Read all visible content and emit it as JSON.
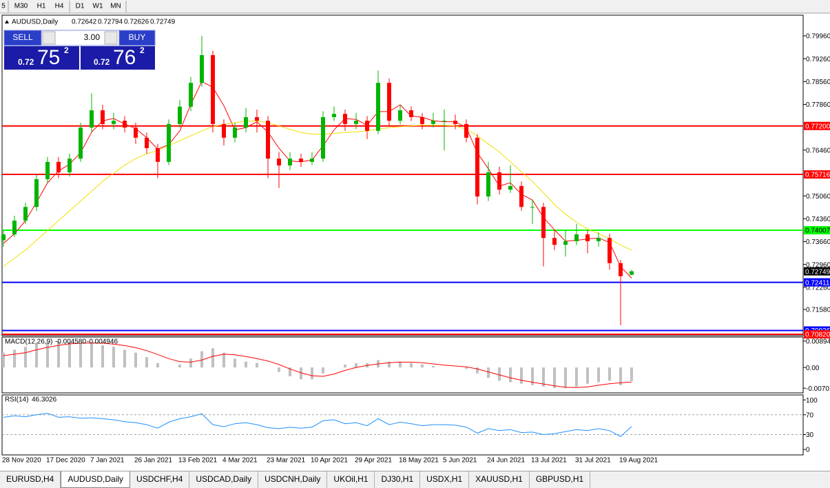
{
  "toolbar": {
    "timeframes": [
      "5",
      "M30",
      "H1",
      "H4",
      "D1",
      "W1",
      "MN"
    ]
  },
  "trade_panel": {
    "sell": "SELL",
    "buy": "BUY",
    "lots": "3.00",
    "sell_price": [
      "0.72",
      "75",
      "2"
    ],
    "buy_price": [
      "0.72",
      "76",
      "2"
    ]
  },
  "chart_data": [
    {
      "type": "candlestick",
      "title": "AUDUSD,Daily",
      "up_color": "#00b400",
      "down_color": "#ff0000",
      "categories": [
        "28 Nov 2020",
        null,
        null,
        null,
        "17 Dec 2020",
        null,
        null,
        null,
        "7 Jan 2021",
        null,
        null,
        null,
        "26 Jan 2021",
        null,
        null,
        null,
        "13 Feb 2021",
        null,
        null,
        null,
        "4 Mar 2021",
        null,
        null,
        null,
        "23 Mar 2021",
        null,
        null,
        null,
        "10 Apr 2021",
        null,
        null,
        null,
        "29 Apr 2021",
        null,
        null,
        null,
        "18 May 2021",
        null,
        null,
        null,
        "5 Jun 2021",
        null,
        null,
        null,
        "24 Jun 2021",
        null,
        null,
        null,
        "13 Jul 2021",
        null,
        null,
        null,
        "31 Jul 2021",
        null,
        null,
        null,
        "19 Aug 2021",
        null
      ],
      "candles": [
        [
          0.737,
          0.74,
          0.735,
          0.7388
        ],
        [
          0.7388,
          0.7445,
          0.738,
          0.743
        ],
        [
          0.743,
          0.7485,
          0.742,
          0.7472
        ],
        [
          0.7472,
          0.757,
          0.746,
          0.7557
        ],
        [
          0.7557,
          0.7625,
          0.7545,
          0.761
        ],
        [
          0.761,
          0.7625,
          0.756,
          0.7578
        ],
        [
          0.7578,
          0.7635,
          0.7565,
          0.762
        ],
        [
          0.762,
          0.773,
          0.761,
          0.7715
        ],
        [
          0.7715,
          0.782,
          0.77,
          0.7768
        ],
        [
          0.7768,
          0.7785,
          0.771,
          0.7726
        ],
        [
          0.7726,
          0.776,
          0.771,
          0.7736
        ],
        [
          0.7736,
          0.775,
          0.77,
          0.7715
        ],
        [
          0.7715,
          0.773,
          0.7665,
          0.7684
        ],
        [
          0.7684,
          0.77,
          0.7635,
          0.7652
        ],
        [
          0.7652,
          0.7665,
          0.756,
          0.761
        ],
        [
          0.761,
          0.774,
          0.76,
          0.7726
        ],
        [
          0.7726,
          0.78,
          0.7715,
          0.7779
        ],
        [
          0.7779,
          0.787,
          0.7765,
          0.7852
        ],
        [
          0.7852,
          0.7996,
          0.784,
          0.7937
        ],
        [
          0.7937,
          0.795,
          0.77,
          0.7726
        ],
        [
          0.7726,
          0.774,
          0.766,
          0.7684
        ],
        [
          0.7684,
          0.773,
          0.767,
          0.7715
        ],
        [
          0.7715,
          0.7775,
          0.77,
          0.7747
        ],
        [
          0.7747,
          0.777,
          0.77,
          0.7736
        ],
        [
          0.7736,
          0.775,
          0.756,
          0.762
        ],
        [
          0.762,
          0.764,
          0.753,
          0.7599
        ],
        [
          0.7599,
          0.764,
          0.7585,
          0.762
        ],
        [
          0.762,
          0.7635,
          0.7595,
          0.761
        ],
        [
          0.761,
          0.764,
          0.76,
          0.762
        ],
        [
          0.762,
          0.7765,
          0.761,
          0.7747
        ],
        [
          0.7747,
          0.778,
          0.7735,
          0.7757
        ],
        [
          0.7757,
          0.777,
          0.7705,
          0.7726
        ],
        [
          0.7726,
          0.776,
          0.771,
          0.7736
        ],
        [
          0.7736,
          0.775,
          0.768,
          0.7705
        ],
        [
          0.7705,
          0.789,
          0.7695,
          0.7852
        ],
        [
          0.7852,
          0.7865,
          0.772,
          0.7736
        ],
        [
          0.7736,
          0.7785,
          0.7725,
          0.7768
        ],
        [
          0.7768,
          0.778,
          0.7735,
          0.7747
        ],
        [
          0.7747,
          0.776,
          0.771,
          0.7726
        ],
        [
          0.7726,
          0.776,
          0.7715,
          0.7736
        ],
        [
          0.7736,
          0.777,
          0.7645,
          0.7736
        ],
        [
          0.7736,
          0.7755,
          0.771,
          0.7726
        ],
        [
          0.7726,
          0.774,
          0.767,
          0.7684
        ],
        [
          0.7684,
          0.7695,
          0.748,
          0.7504
        ],
        [
          0.7504,
          0.761,
          0.749,
          0.7578
        ],
        [
          0.7578,
          0.7595,
          0.751,
          0.7525
        ],
        [
          0.7525,
          0.76,
          0.7515,
          0.7536
        ],
        [
          0.7536,
          0.755,
          0.746,
          0.7472
        ],
        [
          0.7472,
          0.7495,
          0.742,
          0.7472
        ],
        [
          0.7472,
          0.7485,
          0.729,
          0.7377
        ],
        [
          0.7377,
          0.74,
          0.734,
          0.7356
        ],
        [
          0.7356,
          0.74,
          0.732,
          0.7367
        ],
        [
          0.7367,
          0.742,
          0.7355,
          0.7388
        ],
        [
          0.7388,
          0.74,
          0.733,
          0.7367
        ],
        [
          0.7367,
          0.7395,
          0.735,
          0.7377
        ],
        [
          0.7377,
          0.739,
          0.728,
          0.73
        ],
        [
          0.73,
          0.731,
          0.711,
          0.726
        ],
        [
          0.72642,
          0.72794,
          0.72626,
          0.72749
        ]
      ],
      "series": [
        {
          "color": "#ff0000",
          "values": [
            0.736,
            0.739,
            0.743,
            0.7486,
            0.7546,
            0.7582,
            0.7603,
            0.7638,
            0.7701,
            0.7736,
            0.7743,
            0.7726,
            0.7712,
            0.7684,
            0.7649,
            0.7663,
            0.7705,
            0.7786,
            0.7856,
            0.7838,
            0.7782,
            0.7708,
            0.7715,
            0.7733,
            0.7701,
            0.7652,
            0.7613,
            0.761,
            0.7616,
            0.7659,
            0.7708,
            0.7743,
            0.774,
            0.7722,
            0.7764,
            0.7764,
            0.7785,
            0.775,
            0.7747,
            0.7736,
            0.7733,
            0.7733,
            0.7715,
            0.7638,
            0.7589,
            0.7536,
            0.7546,
            0.7511,
            0.7493,
            0.744,
            0.7402,
            0.7367,
            0.737,
            0.7374,
            0.7377,
            0.7363,
            0.7289,
            0.7254
          ]
        },
        {
          "color": "#f0e000",
          "values": [
            0.729,
            0.7315,
            0.734,
            0.737,
            0.74,
            0.743,
            0.746,
            0.749,
            0.752,
            0.755,
            0.7575,
            0.76,
            0.762,
            0.7635,
            0.7645,
            0.766,
            0.7675,
            0.769,
            0.7705,
            0.7718,
            0.7725,
            0.773,
            0.7735,
            0.7735,
            0.773,
            0.772,
            0.771,
            0.77,
            0.7695,
            0.7695,
            0.7697,
            0.77,
            0.7702,
            0.7705,
            0.771,
            0.7715,
            0.7718,
            0.772,
            0.7722,
            0.7722,
            0.7722,
            0.772,
            0.771,
            0.769,
            0.7665,
            0.764,
            0.761,
            0.758,
            0.755,
            0.7515,
            0.748,
            0.745,
            0.7425,
            0.7405,
            0.739,
            0.7375,
            0.7355,
            0.734
          ]
        }
      ],
      "ylim": [
        0.70778,
        0.80593
      ],
      "yticks": [
        {
          "value": 0.7996,
          "label": "0.79960"
        },
        {
          "value": 0.7926,
          "label": "0.79260"
        },
        {
          "value": 0.7856,
          "label": "0.78560"
        },
        {
          "value": 0.7786,
          "label": "0.77860"
        },
        {
          "value": 0.7646,
          "label": "0.76460"
        },
        {
          "value": 0.7506,
          "label": "0.75060"
        },
        {
          "value": 0.7436,
          "label": "0.74360"
        },
        {
          "value": 0.7366,
          "label": "0.73660"
        },
        {
          "value": 0.7296,
          "label": "0.72960"
        },
        {
          "value": 0.7226,
          "label": "0.72260"
        },
        {
          "value": 0.7158,
          "label": "0.71580"
        }
      ],
      "levels": [
        {
          "value": 0.772,
          "label": "0.77200",
          "color": "#ff0000"
        },
        {
          "value": 0.75716,
          "label": "0.75716",
          "color": "#ff0000"
        },
        {
          "value": 0.74007,
          "label": "0.74007",
          "color": "#00ff00"
        },
        {
          "value": 0.72411,
          "label": "0.72411",
          "color": "#0000ff"
        },
        {
          "value": 0.70936,
          "label": "0.70936",
          "color": "#0000ff"
        },
        {
          "value": 0.7082,
          "label": "0.70820",
          "color": "#ff0000"
        }
      ]
    },
    {
      "type": "macd",
      "title": "MACD(12,26,9)",
      "readout": [
        "-0.004580",
        "-0.004946"
      ],
      "color": "#c0c0c0",
      "values": [
        0.005,
        0.006,
        0.007,
        0.008,
        0.0085,
        0.0088,
        0.0085,
        0.008,
        0.008,
        0.0075,
        0.007,
        0.006,
        0.005,
        0.0035,
        0.0015,
        0,
        0.001,
        0.003,
        0.0055,
        0.0065,
        0.005,
        0.003,
        0.002,
        0.0015,
        0,
        -0.0015,
        -0.003,
        -0.004,
        -0.004,
        -0.002,
        0,
        0.001,
        0.0015,
        0.0015,
        0.0025,
        0.002,
        0.002,
        0.0015,
        0.001,
        0.0005,
        0,
        0,
        -0.0005,
        -0.002,
        -0.0035,
        -0.0045,
        -0.005,
        -0.0055,
        -0.006,
        -0.0065,
        -0.007,
        -0.007,
        -0.0065,
        -0.0055,
        -0.005,
        -0.0045,
        -0.006,
        -0.00458
      ],
      "series": [
        {
          "color": "#ff0000",
          "values": [
            0.004,
            0.0045,
            0.005,
            0.006,
            0.0068,
            0.0075,
            0.008,
            0.0082,
            0.0083,
            0.0082,
            0.0079,
            0.0074,
            0.0067,
            0.0057,
            0.0044,
            0.003,
            0.002,
            0.0018,
            0.0025,
            0.0038,
            0.0045,
            0.0043,
            0.0037,
            0.003,
            0.0022,
            0.001,
            -0.0005,
            -0.0018,
            -0.0028,
            -0.003,
            -0.0022,
            -0.001,
            0,
            0.0007,
            0.0012,
            0.0016,
            0.0018,
            0.0018,
            0.0016,
            0.0012,
            0.0008,
            0.0005,
            0.0002,
            -0.0005,
            -0.0015,
            -0.0025,
            -0.0035,
            -0.0043,
            -0.005,
            -0.0056,
            -0.0062,
            -0.0067,
            -0.0068,
            -0.0066,
            -0.006,
            -0.0055,
            -0.0052,
            -0.004946
          ]
        }
      ],
      "ylim": [
        -0.0086,
        0.0103
      ],
      "yticks": [
        0.00894,
        {
          "value": 0,
          "label": "0.00"
        },
        -0.00701
      ]
    },
    {
      "type": "line",
      "title": "RSI(14)",
      "series": [
        {
          "color": "#1e90ff",
          "values": [
            65,
            68,
            66,
            70,
            73,
            65,
            66,
            63,
            64,
            62,
            60,
            56,
            54,
            50,
            43,
            55,
            62,
            66,
            72,
            50,
            46,
            52,
            54,
            50,
            44,
            42,
            45,
            43,
            45,
            58,
            60,
            52,
            54,
            48,
            62,
            50,
            55,
            52,
            48,
            50,
            50,
            49,
            45,
            33,
            42,
            38,
            40,
            34,
            35,
            30,
            32,
            36,
            40,
            38,
            42,
            38,
            26,
            46.3026
          ]
        }
      ],
      "ylim": [
        -11,
        110
      ],
      "yticks": [
        100,
        70,
        30,
        0
      ],
      "dashed_levels": [
        70,
        30
      ]
    }
  ],
  "tabs": [
    "EURUSD,H4",
    "AUDUSD,Daily",
    "USDCHF,H4",
    "USDCAD,Daily",
    "USDCNH,Daily",
    "UKOil,H1",
    "DJ30,H1",
    "USDX,H1",
    "XAUUSD,H1",
    "GBPUSD,H1"
  ],
  "active_tab": 1
}
